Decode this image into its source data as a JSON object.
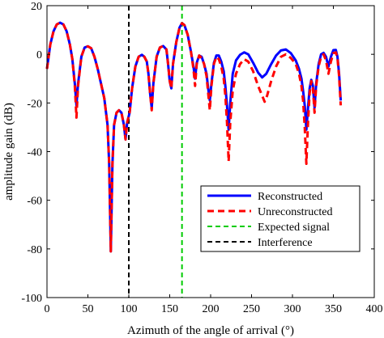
{
  "chart_data": {
    "type": "line",
    "xlabel": "Azimuth of the angle of arrival (°)",
    "ylabel": "amplitude gain (dB)",
    "xlim": [
      0,
      400
    ],
    "ylim": [
      -100,
      20
    ],
    "xticks": [
      0,
      50,
      100,
      150,
      200,
      250,
      300,
      350,
      400
    ],
    "yticks": [
      20,
      0,
      -20,
      -40,
      -60,
      -80,
      -100
    ],
    "grid": false,
    "legend_position": "bottom-right",
    "series": [
      {
        "name": "Reconstructed",
        "color": "#0000ff",
        "dash": "solid",
        "points": [
          [
            0,
            -6
          ],
          [
            4,
            4
          ],
          [
            8,
            9.5
          ],
          [
            12,
            12.3
          ],
          [
            16,
            13
          ],
          [
            20,
            12.3
          ],
          [
            24,
            9.5
          ],
          [
            28,
            4
          ],
          [
            31,
            -2
          ],
          [
            34,
            -12
          ],
          [
            36,
            -21
          ],
          [
            38,
            -12
          ],
          [
            42,
            -1
          ],
          [
            46,
            2.8
          ],
          [
            50,
            3.3
          ],
          [
            54,
            2.5
          ],
          [
            58,
            -1
          ],
          [
            62,
            -6
          ],
          [
            66,
            -12
          ],
          [
            70,
            -18
          ],
          [
            74,
            -29
          ],
          [
            76,
            -45
          ],
          [
            78,
            -81
          ],
          [
            80,
            -45
          ],
          [
            82,
            -29
          ],
          [
            85,
            -24
          ],
          [
            88,
            -23
          ],
          [
            91,
            -24
          ],
          [
            94,
            -29
          ],
          [
            96,
            -35
          ],
          [
            98,
            -28
          ],
          [
            101,
            -24
          ],
          [
            104,
            -14
          ],
          [
            108,
            -5
          ],
          [
            112,
            -1
          ],
          [
            116,
            -0.2
          ],
          [
            119,
            -1
          ],
          [
            122,
            -3
          ],
          [
            124,
            -8
          ],
          [
            126,
            -16
          ],
          [
            128,
            -22
          ],
          [
            130,
            -12
          ],
          [
            134,
            -1
          ],
          [
            138,
            2.8
          ],
          [
            142,
            3.4
          ],
          [
            146,
            2
          ],
          [
            148,
            -4
          ],
          [
            150,
            -11
          ],
          [
            152,
            -14
          ],
          [
            154,
            -4
          ],
          [
            158,
            5
          ],
          [
            162,
            11
          ],
          [
            165,
            12.8
          ],
          [
            168,
            12
          ],
          [
            172,
            8
          ],
          [
            176,
            1
          ],
          [
            179,
            -5
          ],
          [
            181,
            -10
          ],
          [
            183,
            -3.5
          ],
          [
            186,
            -0.5
          ],
          [
            189,
            -1
          ],
          [
            192,
            -4
          ],
          [
            195,
            -8
          ],
          [
            197,
            -14
          ],
          [
            199,
            -19
          ],
          [
            201,
            -12
          ],
          [
            204,
            -3.5
          ],
          [
            207,
            -0.5
          ],
          [
            210,
            -0.5
          ],
          [
            213,
            -3
          ],
          [
            216,
            -7
          ],
          [
            218,
            -13
          ],
          [
            220,
            -21
          ],
          [
            222,
            -31
          ],
          [
            224,
            -20
          ],
          [
            227,
            -8
          ],
          [
            231,
            -2.5
          ],
          [
            236,
            -0.2
          ],
          [
            241,
            0.8
          ],
          [
            246,
            0
          ],
          [
            252,
            -3.5
          ],
          [
            258,
            -7.5
          ],
          [
            263,
            -9.5
          ],
          [
            268,
            -8
          ],
          [
            274,
            -4
          ],
          [
            280,
            -0.5
          ],
          [
            286,
            1.6
          ],
          [
            292,
            2
          ],
          [
            298,
            0.5
          ],
          [
            304,
            -2.5
          ],
          [
            308,
            -6
          ],
          [
            311,
            -10
          ],
          [
            313,
            -15
          ],
          [
            315,
            -21
          ],
          [
            317,
            -31
          ],
          [
            319,
            -22
          ],
          [
            321,
            -14
          ],
          [
            323,
            -10.5
          ],
          [
            325,
            -13
          ],
          [
            327,
            -22
          ],
          [
            329,
            -12
          ],
          [
            332,
            -4
          ],
          [
            335,
            0
          ],
          [
            338,
            0.6
          ],
          [
            341,
            -1
          ],
          [
            344,
            -5
          ],
          [
            347,
            -1
          ],
          [
            350,
            1.7
          ],
          [
            353,
            1.8
          ],
          [
            355,
            -1
          ],
          [
            357,
            -8
          ],
          [
            359,
            -19
          ]
        ]
      },
      {
        "name": "Unreconstructed",
        "color": "#ff0000",
        "dash": "dashed",
        "points": [
          [
            0,
            -6
          ],
          [
            4,
            4
          ],
          [
            8,
            9.5
          ],
          [
            12,
            12.3
          ],
          [
            16,
            13
          ],
          [
            20,
            12.3
          ],
          [
            24,
            9.5
          ],
          [
            28,
            4
          ],
          [
            31,
            -2
          ],
          [
            34,
            -13
          ],
          [
            36,
            -26
          ],
          [
            38,
            -13
          ],
          [
            42,
            -1
          ],
          [
            46,
            2.8
          ],
          [
            50,
            3.3
          ],
          [
            54,
            2.5
          ],
          [
            58,
            -1
          ],
          [
            62,
            -6
          ],
          [
            66,
            -12
          ],
          [
            70,
            -18
          ],
          [
            74,
            -29
          ],
          [
            76,
            -45
          ],
          [
            78,
            -81
          ],
          [
            80,
            -45
          ],
          [
            82,
            -29
          ],
          [
            85,
            -24
          ],
          [
            88,
            -23
          ],
          [
            91,
            -24
          ],
          [
            94,
            -29
          ],
          [
            96,
            -35
          ],
          [
            98,
            -28
          ],
          [
            101,
            -24
          ],
          [
            104,
            -14
          ],
          [
            108,
            -5
          ],
          [
            112,
            -1
          ],
          [
            116,
            -0.2
          ],
          [
            119,
            -1
          ],
          [
            122,
            -3
          ],
          [
            124,
            -8
          ],
          [
            126,
            -16
          ],
          [
            128,
            -23
          ],
          [
            130,
            -12
          ],
          [
            134,
            -1
          ],
          [
            138,
            2.8
          ],
          [
            142,
            3.4
          ],
          [
            146,
            2
          ],
          [
            148,
            -4
          ],
          [
            150,
            -11
          ],
          [
            152,
            -14
          ],
          [
            154,
            -4
          ],
          [
            158,
            5
          ],
          [
            162,
            11
          ],
          [
            165,
            12.8
          ],
          [
            168,
            12
          ],
          [
            172,
            8
          ],
          [
            176,
            1
          ],
          [
            179,
            -6
          ],
          [
            181,
            -13
          ],
          [
            183,
            -4
          ],
          [
            186,
            -0.5
          ],
          [
            189,
            -1.5
          ],
          [
            192,
            -4
          ],
          [
            195,
            -9
          ],
          [
            197,
            -16
          ],
          [
            199,
            -23
          ],
          [
            201,
            -13
          ],
          [
            204,
            -4
          ],
          [
            207,
            -1
          ],
          [
            210,
            -2
          ],
          [
            213,
            -5
          ],
          [
            216,
            -10
          ],
          [
            218,
            -17
          ],
          [
            220,
            -28
          ],
          [
            222,
            -44
          ],
          [
            224,
            -28
          ],
          [
            227,
            -15
          ],
          [
            231,
            -8
          ],
          [
            236,
            -4
          ],
          [
            241,
            -2
          ],
          [
            246,
            -3
          ],
          [
            252,
            -7
          ],
          [
            258,
            -13
          ],
          [
            263,
            -17
          ],
          [
            266,
            -19.5
          ],
          [
            269,
            -17
          ],
          [
            274,
            -11
          ],
          [
            280,
            -5
          ],
          [
            286,
            -1
          ],
          [
            292,
            0
          ],
          [
            298,
            -1.5
          ],
          [
            304,
            -4
          ],
          [
            308,
            -8
          ],
          [
            311,
            -13
          ],
          [
            313,
            -19
          ],
          [
            315,
            -30
          ],
          [
            317,
            -45
          ],
          [
            319,
            -28
          ],
          [
            321,
            -16
          ],
          [
            323,
            -11
          ],
          [
            325,
            -14
          ],
          [
            327,
            -24
          ],
          [
            329,
            -13
          ],
          [
            332,
            -5
          ],
          [
            335,
            -1
          ],
          [
            338,
            0
          ],
          [
            341,
            -2.5
          ],
          [
            344,
            -8
          ],
          [
            347,
            -3
          ],
          [
            350,
            0.5
          ],
          [
            353,
            0.8
          ],
          [
            355,
            -1.5
          ],
          [
            357,
            -9
          ],
          [
            359,
            -21
          ]
        ]
      },
      {
        "name": "Expected signal",
        "color": "#00cc00",
        "dash": "dashed",
        "vertical_x": 165
      },
      {
        "name": "Interference",
        "color": "#000000",
        "dash": "dashed",
        "vertical_x": 100
      }
    ]
  }
}
